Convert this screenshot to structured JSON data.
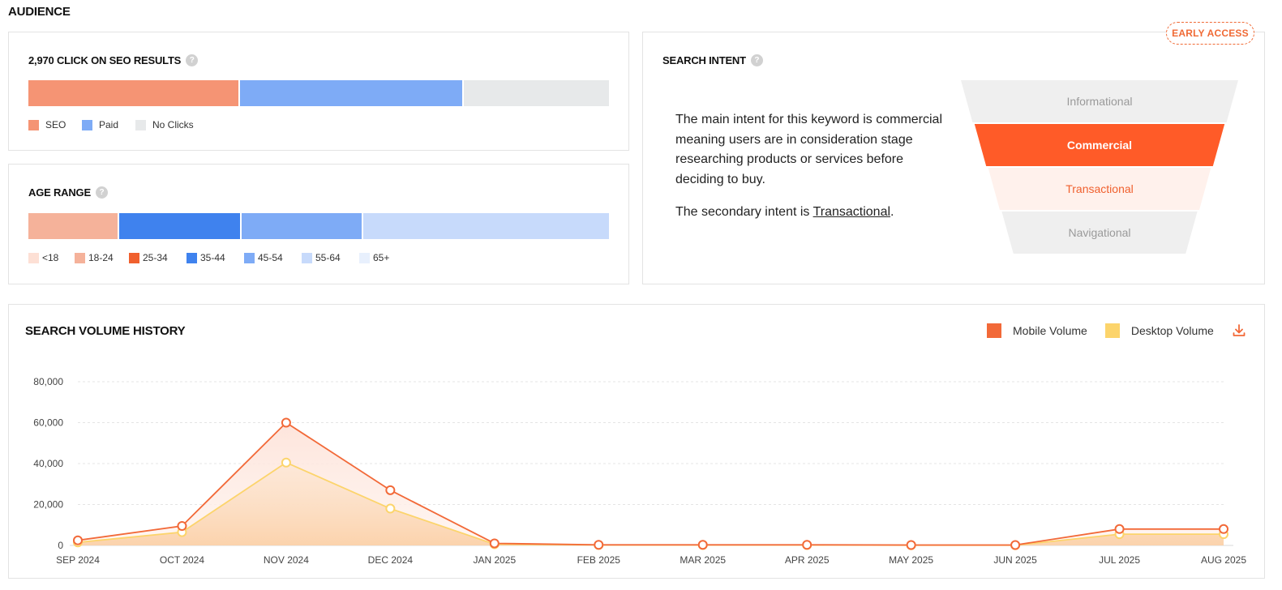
{
  "section_title": "AUDIENCE",
  "clicks": {
    "title": "2,970 CLICK ON SEO RESULTS",
    "segments": [
      {
        "name": "SEO",
        "share": 0.365,
        "color": "#f59474"
      },
      {
        "name": "Paid",
        "share": 0.385,
        "color": "#7eabf6"
      },
      {
        "name": "No Clicks",
        "share": 0.25,
        "color": "#e7e9ea"
      }
    ],
    "legend": [
      "SEO",
      "Paid",
      "No Clicks"
    ]
  },
  "age": {
    "title": "AGE RANGE",
    "segments": [
      {
        "name": "18-24",
        "share": 0.157,
        "color": "#f5b29a"
      },
      {
        "name": "35-44",
        "share": 0.21,
        "color": "#3f82ee"
      },
      {
        "name": "45-54",
        "share": 0.21,
        "color": "#7eabf6"
      },
      {
        "name": "55-64",
        "share": 0.423,
        "color": "#c7dafb"
      }
    ],
    "legend": [
      {
        "label": "<18",
        "color": "#fde0d5"
      },
      {
        "label": "18-24",
        "color": "#f5b29a"
      },
      {
        "label": "25-34",
        "color": "#f0602e"
      },
      {
        "label": "35-44",
        "color": "#3f82ee"
      },
      {
        "label": "45-54",
        "color": "#7eabf6"
      },
      {
        "label": "55-64",
        "color": "#c7dafb"
      },
      {
        "label": "65+",
        "color": "#e8f0fd"
      }
    ]
  },
  "intent": {
    "title": "SEARCH INTENT",
    "badge": "EARLY ACCESS",
    "main_text": "The main intent for this keyword is commercial meaning users are in consideration stage researching products or services before deciding to buy.",
    "secondary_prefix": "The secondary intent is ",
    "secondary_link": "Transactional",
    "secondary_suffix": ".",
    "funnel": [
      {
        "label": "Informational",
        "bg": "#efefef",
        "color": "#9a9a9a",
        "bold": false
      },
      {
        "label": "Commercial",
        "bg": "#ff5b28",
        "color": "#ffffff",
        "bold": true
      },
      {
        "label": "Transactional",
        "bg": "#fff1ec",
        "color": "#f0602e",
        "bold": false
      },
      {
        "label": "Navigational",
        "bg": "#efefef",
        "color": "#9a9a9a",
        "bold": false
      }
    ]
  },
  "history": {
    "title": "SEARCH VOLUME HISTORY",
    "legend": [
      {
        "label": "Mobile Volume",
        "color": "#f26938"
      },
      {
        "label": "Desktop Volume",
        "color": "#fcd46b"
      }
    ],
    "download_icon": "download-icon"
  },
  "chart_data": {
    "type": "area",
    "title": "SEARCH VOLUME HISTORY",
    "x": [
      "SEP 2024",
      "OCT 2024",
      "NOV 2024",
      "DEC 2024",
      "JAN 2025",
      "FEB 2025",
      "MAR 2025",
      "APR 2025",
      "MAY 2025",
      "JUN 2025",
      "JUL 2025",
      "AUG 2025"
    ],
    "series": [
      {
        "name": "Mobile Volume",
        "color": "#f26938",
        "values": [
          2500,
          9500,
          60000,
          27000,
          1000,
          300,
          300,
          300,
          200,
          200,
          8000,
          8000
        ]
      },
      {
        "name": "Desktop Volume",
        "color": "#fcd46b",
        "values": [
          1500,
          6500,
          40500,
          18000,
          600,
          200,
          200,
          200,
          100,
          100,
          5500,
          5500
        ]
      }
    ],
    "yticks": [
      "0",
      "20,000",
      "40,000",
      "60,000",
      "80,000"
    ],
    "ylim": [
      0,
      80000
    ],
    "grid": true,
    "legend": "top-right"
  }
}
